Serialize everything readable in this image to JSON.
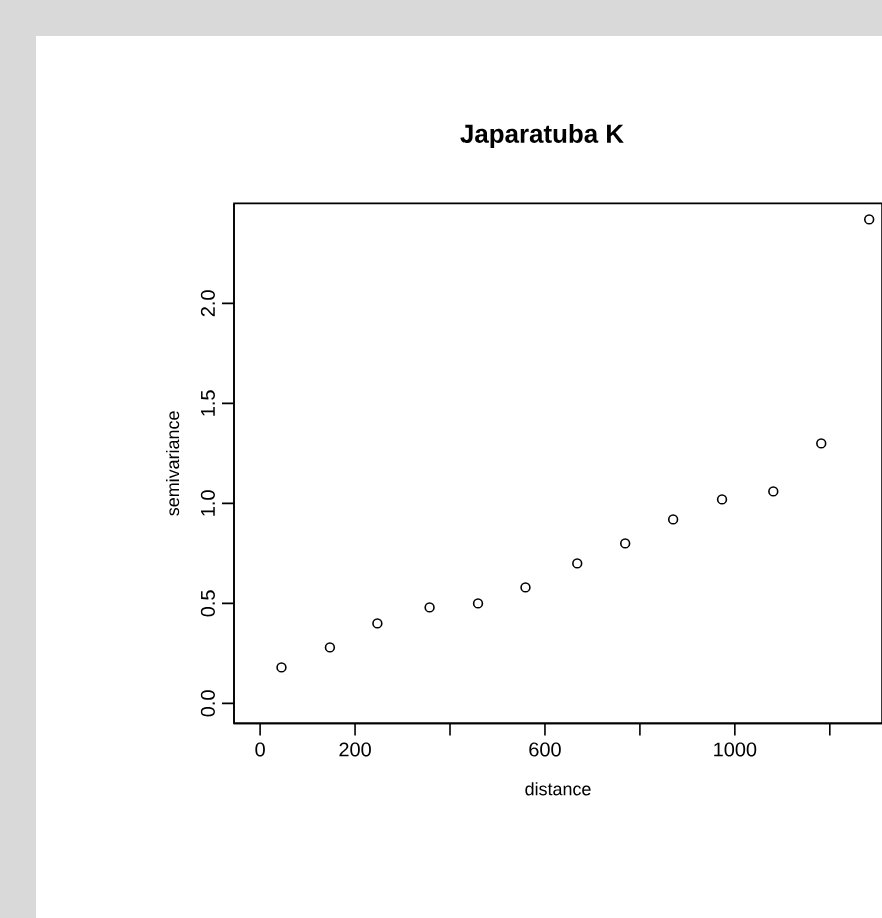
{
  "chart_data": {
    "type": "scatter",
    "title": "Japaratuba K",
    "xlabel": "distance",
    "ylabel": "semivariance",
    "x": [
      45,
      147,
      247,
      357,
      459,
      559,
      668,
      769,
      870,
      973,
      1081,
      1182,
      1283
    ],
    "values": [
      0.18,
      0.28,
      0.4,
      0.48,
      0.5,
      0.58,
      0.7,
      0.8,
      0.92,
      1.02,
      1.06,
      1.3,
      2.42
    ],
    "color": "#000000",
    "marker": "circle",
    "grid": false,
    "xlim": [
      -55,
      1310
    ],
    "ylim": [
      -0.1,
      2.5
    ],
    "xticks": [
      0,
      200,
      {
        "value": 400,
        "label": null
      },
      600,
      {
        "value": 800,
        "label": null
      },
      1000,
      {
        "value": 1200,
        "label": null
      }
    ],
    "yticks": [
      {
        "value": 0,
        "label": "0.0"
      },
      {
        "value": 0.5,
        "label": "0.5"
      },
      {
        "value": 1,
        "label": "1.0"
      },
      {
        "value": 1.5,
        "label": "1.5"
      },
      {
        "value": 2,
        "label": "2.0"
      }
    ]
  }
}
